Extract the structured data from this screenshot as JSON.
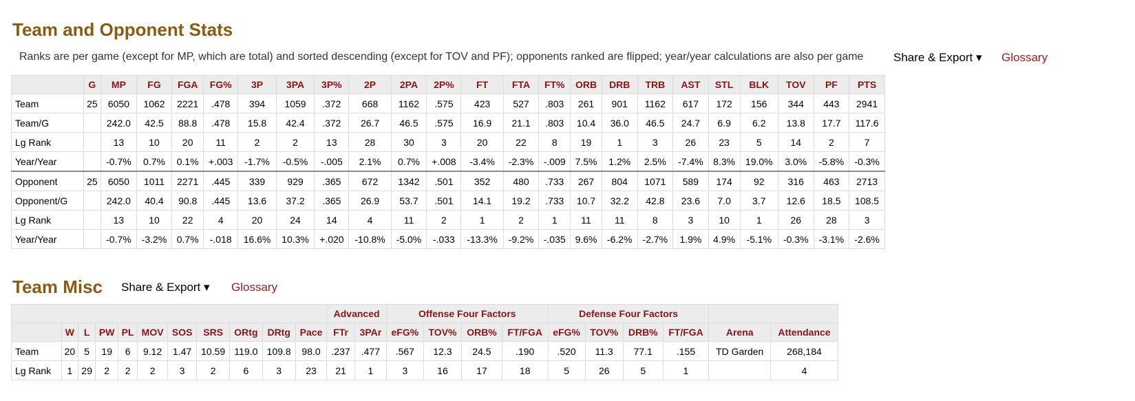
{
  "section1": {
    "title": "Team and Opponent Stats",
    "note": "Ranks are per game (except for MP, which are total) and sorted descending (except for TOV and PF); opponents ranked are flipped; year/year calculations are also per game",
    "share_label": "Share & Export ▾",
    "glossary_label": "Glossary",
    "columns": [
      "",
      "G",
      "MP",
      "FG",
      "FGA",
      "FG%",
      "3P",
      "3PA",
      "3P%",
      "2P",
      "2PA",
      "2P%",
      "FT",
      "FTA",
      "FT%",
      "ORB",
      "DRB",
      "TRB",
      "AST",
      "STL",
      "BLK",
      "TOV",
      "PF",
      "PTS"
    ],
    "rows": [
      [
        "Team",
        "25",
        "6050",
        "1062",
        "2221",
        ".478",
        "394",
        "1059",
        ".372",
        "668",
        "1162",
        ".575",
        "423",
        "527",
        ".803",
        "261",
        "901",
        "1162",
        "617",
        "172",
        "156",
        "344",
        "443",
        "2941"
      ],
      [
        "Team/G",
        "",
        "242.0",
        "42.5",
        "88.8",
        ".478",
        "15.8",
        "42.4",
        ".372",
        "26.7",
        "46.5",
        ".575",
        "16.9",
        "21.1",
        ".803",
        "10.4",
        "36.0",
        "46.5",
        "24.7",
        "6.9",
        "6.2",
        "13.8",
        "17.7",
        "117.6"
      ],
      [
        "Lg Rank",
        "",
        "13",
        "10",
        "20",
        "11",
        "2",
        "2",
        "13",
        "28",
        "30",
        "3",
        "20",
        "22",
        "8",
        "19",
        "1",
        "3",
        "26",
        "23",
        "5",
        "14",
        "2",
        "7"
      ],
      [
        "Year/Year",
        "",
        "-0.7%",
        "0.7%",
        "0.1%",
        "+.003",
        "-1.7%",
        "-0.5%",
        "-.005",
        "2.1%",
        "0.7%",
        "+.008",
        "-3.4%",
        "-2.3%",
        "-.009",
        "7.5%",
        "1.2%",
        "2.5%",
        "-7.4%",
        "8.3%",
        "19.0%",
        "3.0%",
        "-5.8%",
        "-0.3%"
      ],
      [
        "Opponent",
        "25",
        "6050",
        "1011",
        "2271",
        ".445",
        "339",
        "929",
        ".365",
        "672",
        "1342",
        ".501",
        "352",
        "480",
        ".733",
        "267",
        "804",
        "1071",
        "589",
        "174",
        "92",
        "316",
        "463",
        "2713"
      ],
      [
        "Opponent/G",
        "",
        "242.0",
        "40.4",
        "90.8",
        ".445",
        "13.6",
        "37.2",
        ".365",
        "26.9",
        "53.7",
        ".501",
        "14.1",
        "19.2",
        ".733",
        "10.7",
        "32.2",
        "42.8",
        "23.6",
        "7.0",
        "3.7",
        "12.6",
        "18.5",
        "108.5"
      ],
      [
        "Lg Rank",
        "",
        "13",
        "10",
        "22",
        "4",
        "20",
        "24",
        "14",
        "4",
        "11",
        "2",
        "1",
        "2",
        "1",
        "11",
        "11",
        "8",
        "3",
        "10",
        "1",
        "26",
        "28",
        "3"
      ],
      [
        "Year/Year",
        "",
        "-0.7%",
        "-3.2%",
        "0.7%",
        "-.018",
        "16.6%",
        "10.3%",
        "+.020",
        "-10.8%",
        "-5.0%",
        "-.033",
        "-13.3%",
        "-9.2%",
        "-.035",
        "9.6%",
        "-6.2%",
        "-2.7%",
        "1.9%",
        "4.9%",
        "-5.1%",
        "-0.3%",
        "-3.1%",
        "-2.6%"
      ]
    ]
  },
  "section2": {
    "title": "Team Misc",
    "share_label": "Share & Export ▾",
    "glossary_label": "Glossary",
    "groups": [
      "Advanced",
      "Offense Four Factors",
      "Defense Four Factors"
    ],
    "columns": [
      "",
      "W",
      "L",
      "PW",
      "PL",
      "MOV",
      "SOS",
      "SRS",
      "ORtg",
      "DRtg",
      "Pace",
      "FTr",
      "3PAr",
      "eFG%",
      "TOV%",
      "ORB%",
      "FT/FGA",
      "eFG%",
      "TOV%",
      "DRB%",
      "FT/FGA",
      "Arena",
      "Attendance"
    ],
    "rows": [
      [
        "Team",
        "20",
        "5",
        "19",
        "6",
        "9.12",
        "1.47",
        "10.59",
        "119.0",
        "109.8",
        "98.0",
        ".237",
        ".477",
        ".567",
        "12.3",
        "24.5",
        ".190",
        ".520",
        "11.3",
        "77.1",
        ".155",
        "TD Garden",
        "268,184"
      ],
      [
        "Lg Rank",
        "1",
        "29",
        "2",
        "2",
        "2",
        "3",
        "2",
        "6",
        "3",
        "23",
        "21",
        "1",
        "3",
        "16",
        "17",
        "18",
        "5",
        "26",
        "5",
        "1",
        "",
        "4"
      ]
    ]
  }
}
